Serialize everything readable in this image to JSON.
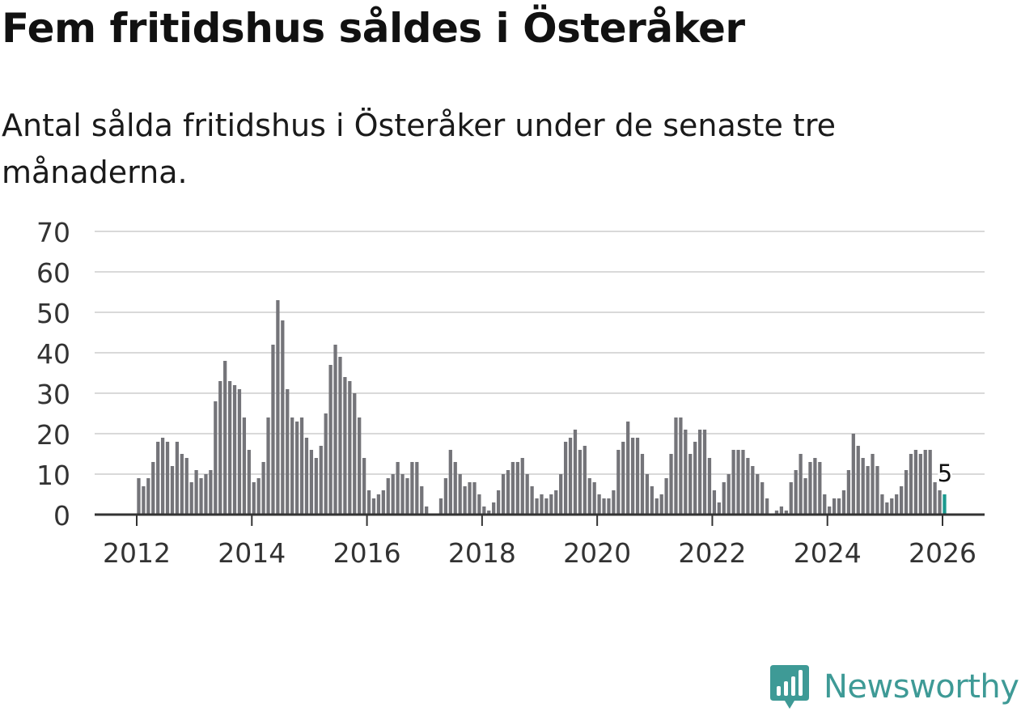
{
  "header": {
    "title": "Fem fritidshus såldes i Österåker",
    "subtitle": "Antal sålda fritidshus i Österåker under de senaste tre månaderna."
  },
  "brand": {
    "name": "Newsworthy",
    "color": "#3e9a96"
  },
  "colors": {
    "bar": "#747479",
    "highlight": "#1b9a8f",
    "grid": "#d9d9d9",
    "axis": "#333333"
  },
  "chart_data": {
    "type": "bar",
    "title": "Fem fritidshus såldes i Österåker",
    "xlabel": "",
    "ylabel": "",
    "ylim": [
      0,
      70
    ],
    "y_ticks": [
      "0",
      "10",
      "20",
      "30",
      "40",
      "50",
      "60",
      "70"
    ],
    "x_ticks": [
      "2012",
      "2014",
      "2016",
      "2018",
      "2020",
      "2022",
      "2024",
      "2026"
    ],
    "x_start": "2012-01",
    "x_end": "2026-01",
    "highlight_label": "5",
    "values": [
      9,
      7,
      9,
      13,
      18,
      19,
      18,
      12,
      18,
      15,
      14,
      8,
      11,
      9,
      10,
      11,
      28,
      33,
      38,
      33,
      32,
      31,
      24,
      16,
      8,
      9,
      13,
      24,
      42,
      53,
      48,
      31,
      24,
      23,
      24,
      19,
      16,
      14,
      17,
      25,
      37,
      42,
      39,
      34,
      33,
      30,
      24,
      14,
      6,
      4,
      5,
      6,
      9,
      10,
      13,
      10,
      9,
      13,
      13,
      7,
      2,
      0,
      0,
      4,
      9,
      16,
      13,
      10,
      7,
      8,
      8,
      5,
      2,
      1,
      3,
      6,
      10,
      11,
      13,
      13,
      14,
      10,
      7,
      4,
      5,
      4,
      5,
      6,
      10,
      18,
      19,
      21,
      16,
      17,
      9,
      8,
      5,
      4,
      4,
      6,
      16,
      18,
      23,
      19,
      19,
      15,
      10,
      7,
      4,
      5,
      9,
      15,
      24,
      24,
      21,
      15,
      18,
      21,
      21,
      14,
      6,
      3,
      8,
      10,
      16,
      16,
      16,
      14,
      12,
      10,
      8,
      4,
      0,
      1,
      2,
      1,
      8,
      11,
      15,
      9,
      13,
      14,
      13,
      5,
      2,
      4,
      4,
      6,
      11,
      20,
      17,
      14,
      12,
      15,
      12,
      5,
      3,
      4,
      5,
      7,
      11,
      15,
      16,
      15,
      16,
      16,
      8,
      6,
      5
    ]
  }
}
